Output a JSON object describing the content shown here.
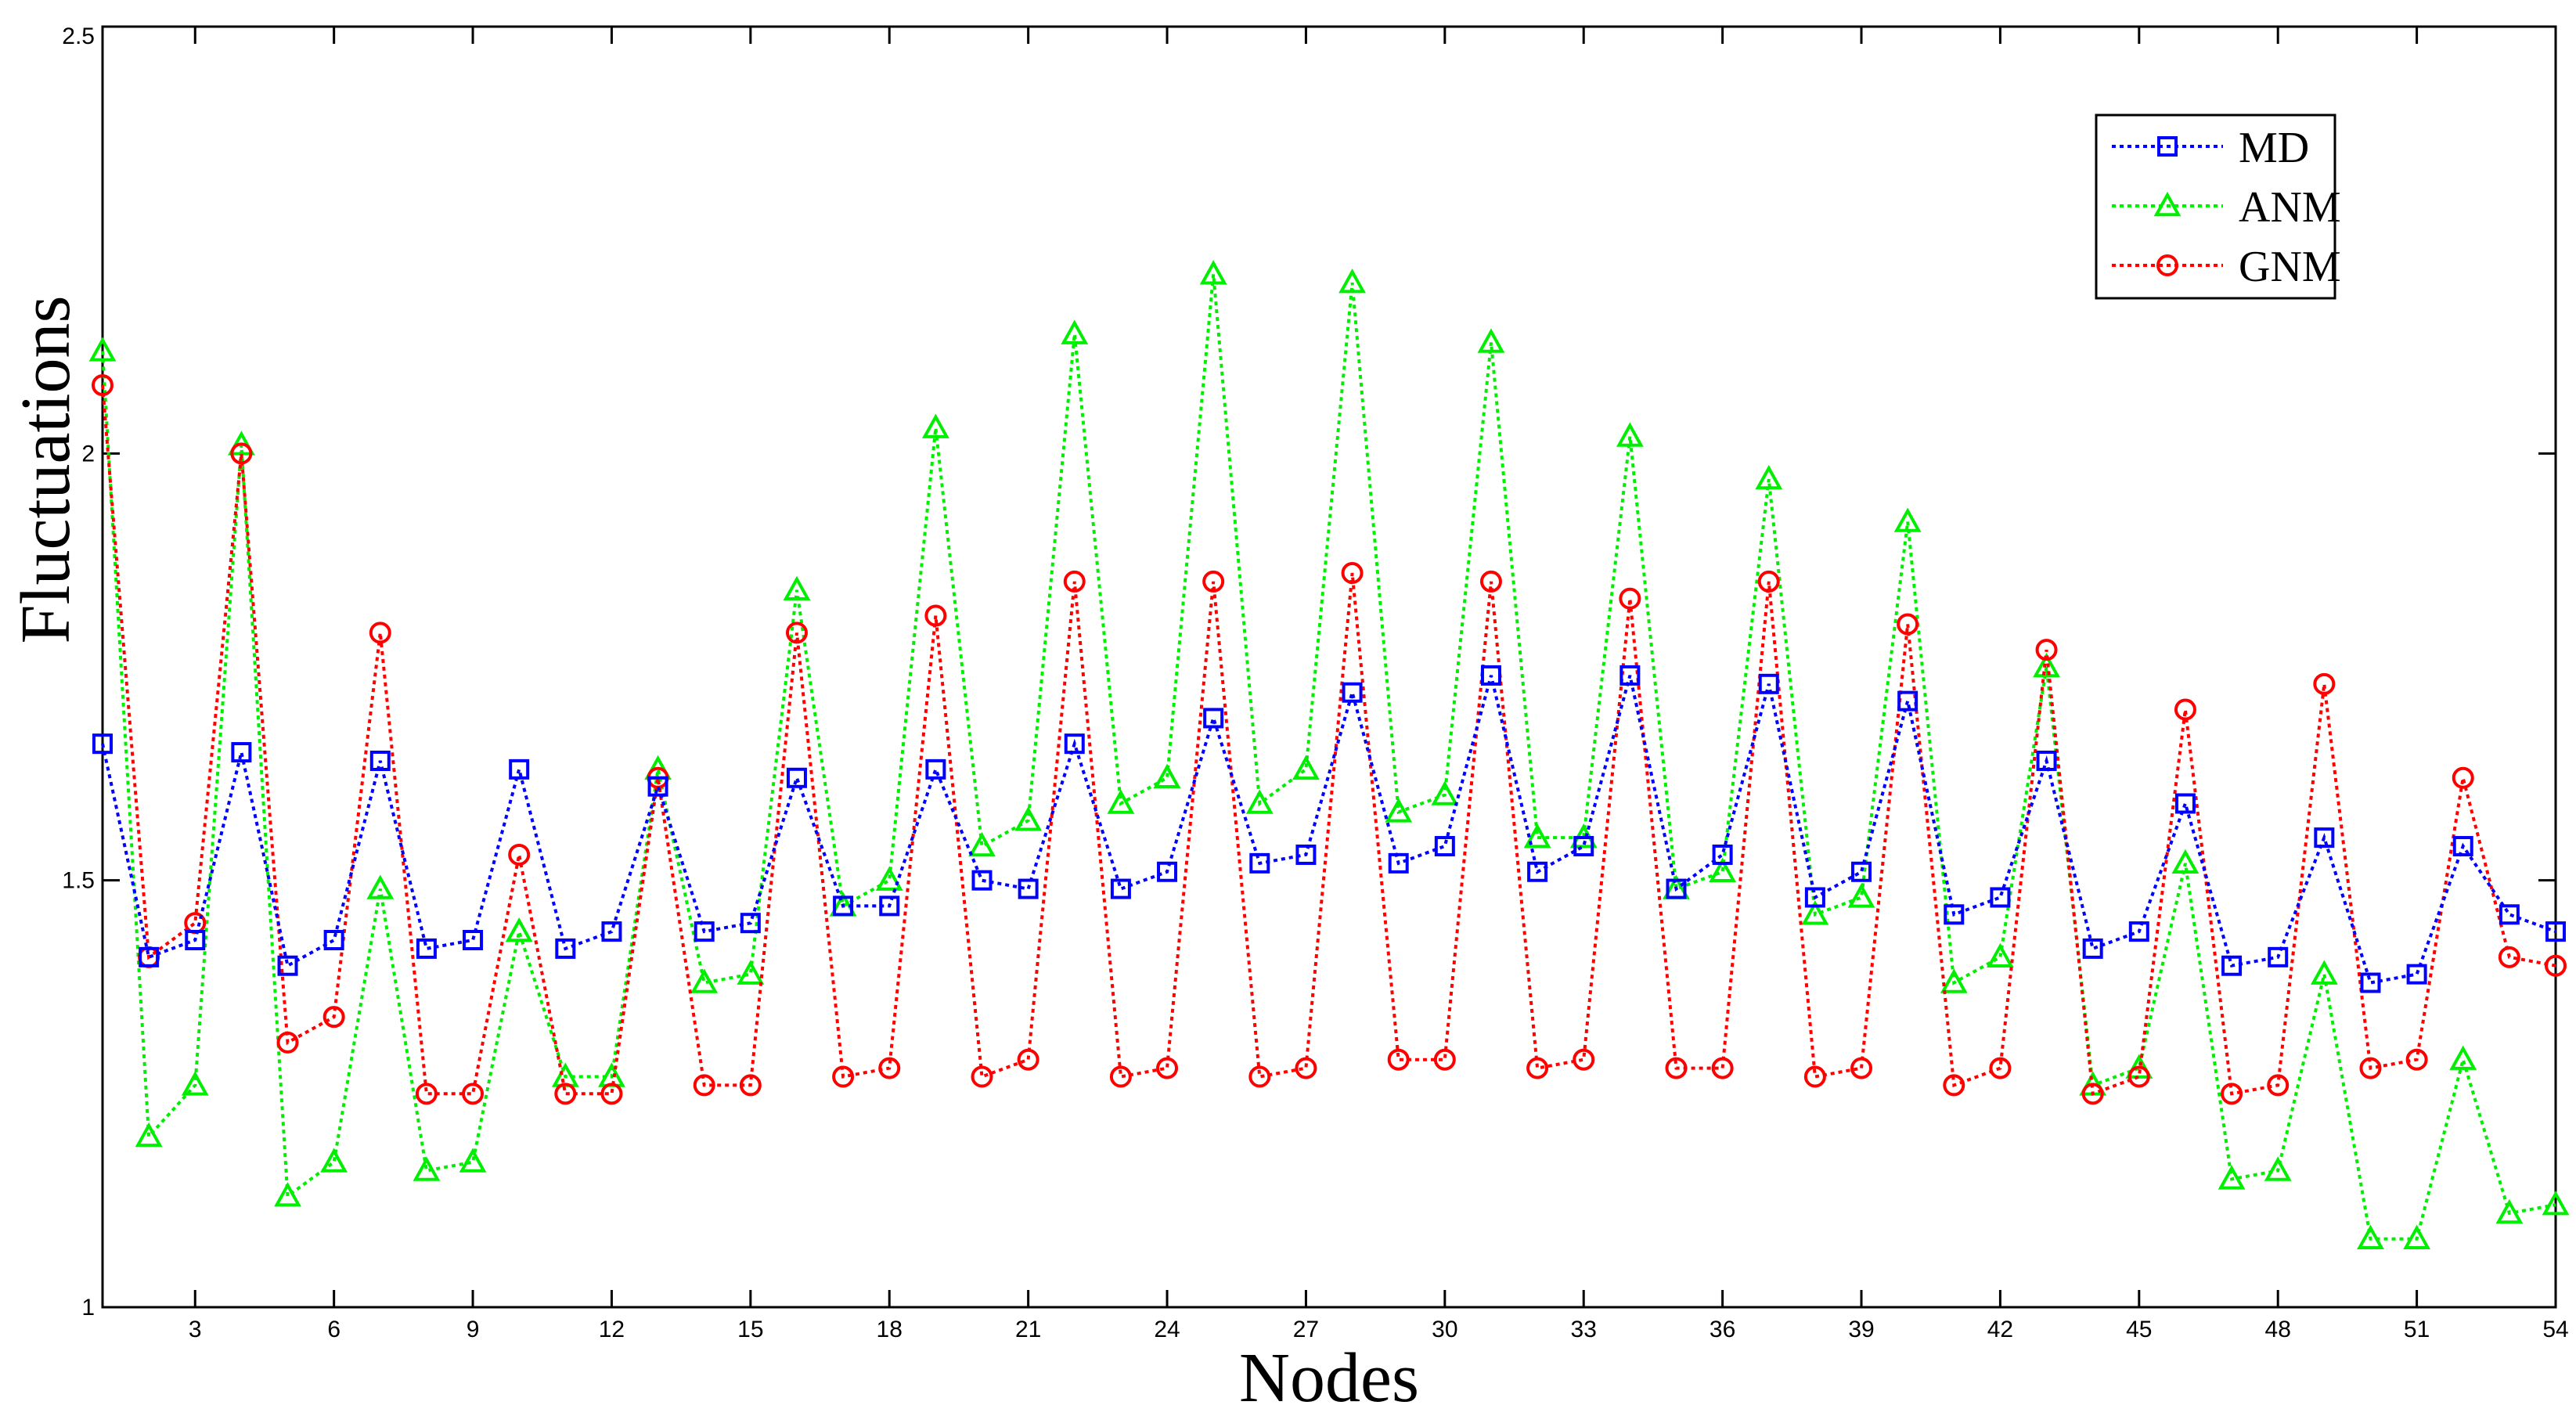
{
  "chart_data": {
    "type": "line",
    "xlabel": "Nodes",
    "ylabel": "Fluctuations",
    "xlim": [
      1,
      54
    ],
    "ylim": [
      1,
      2.5
    ],
    "xticks": [
      3,
      6,
      9,
      12,
      15,
      18,
      21,
      24,
      27,
      30,
      33,
      36,
      39,
      42,
      45,
      48,
      51,
      54
    ],
    "yticks": [
      1,
      1.5,
      2,
      2.5
    ],
    "ytick_labels": [
      "1",
      "1.5",
      "2",
      "2.5"
    ],
    "legend_position": "top-right",
    "grid": false,
    "x": [
      1,
      2,
      3,
      4,
      5,
      6,
      7,
      8,
      9,
      10,
      11,
      12,
      13,
      14,
      15,
      16,
      17,
      18,
      19,
      20,
      21,
      22,
      23,
      24,
      25,
      26,
      27,
      28,
      29,
      30,
      31,
      32,
      33,
      34,
      35,
      36,
      37,
      38,
      39,
      40,
      41,
      42,
      43,
      44,
      45,
      46,
      47,
      48,
      49,
      50,
      51,
      52,
      53,
      54
    ],
    "series": [
      {
        "name": "MD",
        "color": "#0000ff",
        "marker": "square",
        "values": [
          1.66,
          1.41,
          1.43,
          1.65,
          1.4,
          1.43,
          1.64,
          1.42,
          1.43,
          1.63,
          1.42,
          1.44,
          1.61,
          1.44,
          1.45,
          1.62,
          1.47,
          1.47,
          1.63,
          1.5,
          1.49,
          1.66,
          1.49,
          1.51,
          1.69,
          1.52,
          1.53,
          1.72,
          1.52,
          1.54,
          1.74,
          1.51,
          1.54,
          1.74,
          1.49,
          1.53,
          1.73,
          1.48,
          1.51,
          1.71,
          1.46,
          1.48,
          1.64,
          1.42,
          1.44,
          1.59,
          1.4,
          1.41,
          1.55,
          1.38,
          1.39,
          1.54,
          1.46,
          1.44
        ]
      },
      {
        "name": "ANM",
        "color": "#00ee00",
        "marker": "triangle",
        "values": [
          2.12,
          1.2,
          1.26,
          2.01,
          1.13,
          1.17,
          1.49,
          1.16,
          1.17,
          1.44,
          1.27,
          1.27,
          1.63,
          1.38,
          1.39,
          1.84,
          1.47,
          1.5,
          2.03,
          1.54,
          1.57,
          2.14,
          1.59,
          1.62,
          2.21,
          1.59,
          1.63,
          2.2,
          1.58,
          1.6,
          2.13,
          1.55,
          1.55,
          2.02,
          1.49,
          1.51,
          1.97,
          1.46,
          1.48,
          1.92,
          1.38,
          1.41,
          1.75,
          1.26,
          1.28,
          1.52,
          1.15,
          1.16,
          1.39,
          1.08,
          1.08,
          1.29,
          1.11,
          1.12
        ]
      },
      {
        "name": "GNM",
        "color": "#ff0000",
        "marker": "circle",
        "values": [
          2.08,
          1.41,
          1.45,
          2.0,
          1.31,
          1.34,
          1.79,
          1.25,
          1.25,
          1.53,
          1.25,
          1.25,
          1.62,
          1.26,
          1.26,
          1.79,
          1.27,
          1.28,
          1.81,
          1.27,
          1.29,
          1.85,
          1.27,
          1.28,
          1.85,
          1.27,
          1.28,
          1.86,
          1.29,
          1.29,
          1.85,
          1.28,
          1.29,
          1.83,
          1.28,
          1.28,
          1.85,
          1.27,
          1.28,
          1.8,
          1.26,
          1.28,
          1.77,
          1.25,
          1.27,
          1.7,
          1.25,
          1.26,
          1.73,
          1.28,
          1.29,
          1.62,
          1.41,
          1.4
        ]
      }
    ]
  }
}
